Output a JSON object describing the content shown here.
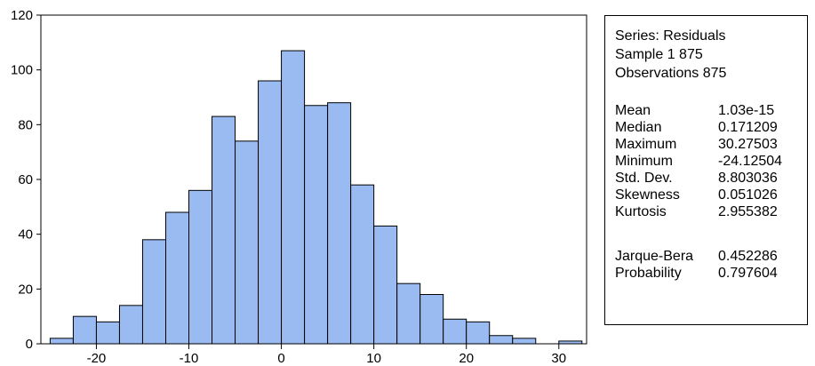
{
  "chart_data": {
    "type": "bar",
    "bins": [
      {
        "x0": -25,
        "x1": -22.5,
        "count": 2
      },
      {
        "x0": -22.5,
        "x1": -20,
        "count": 10
      },
      {
        "x0": -20,
        "x1": -17.5,
        "count": 8
      },
      {
        "x0": -17.5,
        "x1": -15,
        "count": 14
      },
      {
        "x0": -15,
        "x1": -12.5,
        "count": 38
      },
      {
        "x0": -12.5,
        "x1": -10,
        "count": 48
      },
      {
        "x0": -10,
        "x1": -7.5,
        "count": 56
      },
      {
        "x0": -7.5,
        "x1": -5,
        "count": 83
      },
      {
        "x0": -5,
        "x1": -2.5,
        "count": 74
      },
      {
        "x0": -2.5,
        "x1": 0,
        "count": 96
      },
      {
        "x0": 0,
        "x1": 2.5,
        "count": 107
      },
      {
        "x0": 2.5,
        "x1": 5,
        "count": 87
      },
      {
        "x0": 5,
        "x1": 7.5,
        "count": 88
      },
      {
        "x0": 7.5,
        "x1": 10,
        "count": 58
      },
      {
        "x0": 10,
        "x1": 12.5,
        "count": 43
      },
      {
        "x0": 12.5,
        "x1": 15,
        "count": 22
      },
      {
        "x0": 15,
        "x1": 17.5,
        "count": 18
      },
      {
        "x0": 17.5,
        "x1": 20,
        "count": 9
      },
      {
        "x0": 20,
        "x1": 22.5,
        "count": 8
      },
      {
        "x0": 22.5,
        "x1": 25,
        "count": 3
      },
      {
        "x0": 25,
        "x1": 27.5,
        "count": 2
      },
      {
        "x0": 27.5,
        "x1": 30,
        "count": 0
      },
      {
        "x0": 30,
        "x1": 32.5,
        "count": 1
      }
    ],
    "xlim": [
      -26,
      33
    ],
    "ylim": [
      0,
      120
    ],
    "xticks": [
      -20,
      -10,
      0,
      10,
      20,
      30
    ],
    "yticks": [
      0,
      20,
      40,
      60,
      80,
      100,
      120
    ],
    "xlabel": "",
    "ylabel": "",
    "grid": false,
    "bar_color": "#99bbf2",
    "edge_color": "#000000"
  },
  "stats": {
    "header": [
      "Series: Residuals",
      "Sample 1 875",
      "Observations 875"
    ],
    "rows": [
      {
        "name": "Mean",
        "value": " 1.03e-15"
      },
      {
        "name": "Median",
        "value": "0.171209"
      },
      {
        "name": "Maximum",
        "value": "30.27503"
      },
      {
        "name": "Minimum",
        "value": " -24.12504"
      },
      {
        "name": "Std. Dev.",
        "value": "8.803036"
      },
      {
        "name": "Skewness",
        "value": "0.051026"
      },
      {
        "name": "Kurtosis",
        "value": "2.955382"
      }
    ],
    "test_rows": [
      {
        "name": "Jarque-Bera",
        "value": "0.452286"
      },
      {
        "name": "Probability",
        "value": "0.797604"
      }
    ]
  }
}
